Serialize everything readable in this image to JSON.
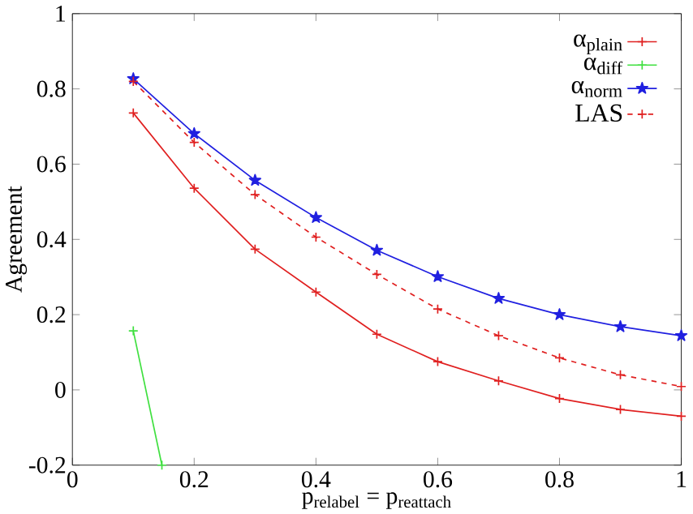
{
  "chart_data": {
    "type": "line",
    "xlabel": "p$_{relabel}$ = p$_{reattach}$",
    "ylabel": "Agreement",
    "x": [
      0.1,
      0.2,
      0.3,
      0.4,
      0.5,
      0.6,
      0.7,
      0.8,
      0.9,
      1.0
    ],
    "xlim": [
      0,
      1
    ],
    "xticks": [
      0,
      0.2,
      0.4,
      0.6,
      0.8,
      1
    ],
    "ylim": [
      -0.2,
      1
    ],
    "yticks": [
      -0.2,
      0,
      0.2,
      0.4,
      0.6,
      0.8,
      1
    ],
    "legend": "top right",
    "grid": false,
    "series": [
      {
        "name": "α$_{plain}$",
        "color": "#e02020",
        "marker": "cross",
        "line_style": "solid",
        "values": [
          0.736,
          0.536,
          0.374,
          0.26,
          0.148,
          0.075,
          0.024,
          -0.023,
          -0.052,
          -0.07
        ]
      },
      {
        "name": "α$_{diff}$",
        "color": "#40e040",
        "marker": "cross",
        "line_style": "solid",
        "x": [
          0.1,
          0.147
        ],
        "values": [
          0.157,
          -0.2
        ]
      },
      {
        "name": "α$_{norm}$",
        "color": "#2020e0",
        "marker": "star",
        "line_style": "solid",
        "values": [
          0.827,
          0.681,
          0.557,
          0.458,
          0.371,
          0.301,
          0.243,
          0.2,
          0.168,
          0.144
        ]
      },
      {
        "name": "LAS",
        "color": "#e02020",
        "marker": "cross",
        "line_style": "dashed",
        "values": [
          0.82,
          0.658,
          0.519,
          0.406,
          0.307,
          0.215,
          0.144,
          0.085,
          0.04,
          0.009
        ]
      }
    ]
  }
}
